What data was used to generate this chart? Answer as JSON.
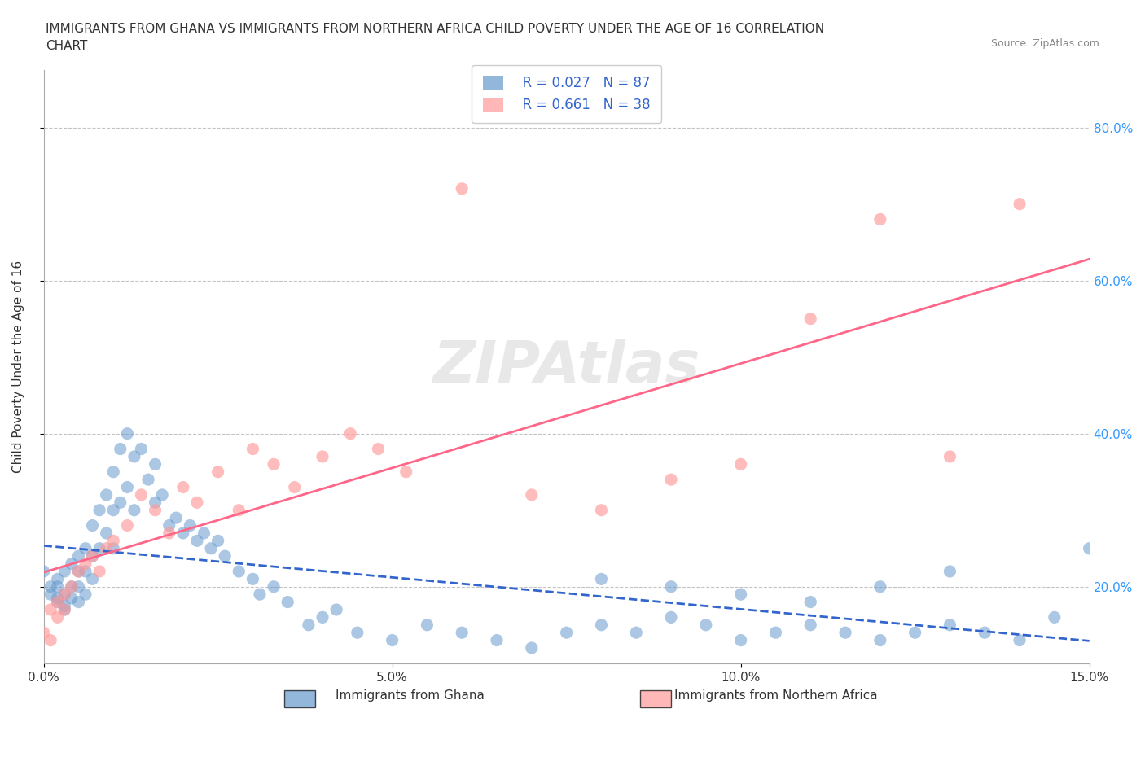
{
  "title": "IMMIGRANTS FROM GHANA VS IMMIGRANTS FROM NORTHERN AFRICA CHILD POVERTY UNDER THE AGE OF 16 CORRELATION\nCHART",
  "source": "Source: ZipAtlas.com",
  "xlabel": "",
  "ylabel": "Child Poverty Under the Age of 16",
  "xlim": [
    0.0,
    0.15
  ],
  "ylim": [
    0.1,
    0.875
  ],
  "xticks": [
    0.0,
    0.05,
    0.1,
    0.15
  ],
  "xtick_labels": [
    "0.0%",
    "5.0%",
    "10.0%",
    "15.0%"
  ],
  "ytick_positions": [
    0.2,
    0.4,
    0.6,
    0.8
  ],
  "ytick_labels": [
    "20.0%",
    "40.0%",
    "60.0%",
    "80.0%"
  ],
  "ghana_color": "#6699CC",
  "northern_africa_color": "#FF9999",
  "ghana_line_color": "#3366CC",
  "northern_africa_line_color": "#FF6688",
  "watermark": "ZIPAtlas",
  "legend_R_ghana": "R = 0.027",
  "legend_N_ghana": "N = 87",
  "legend_R_africa": "R = 0.661",
  "legend_N_africa": "N = 38",
  "ghana_scatter_x": [
    0.0,
    0.001,
    0.001,
    0.002,
    0.002,
    0.002,
    0.002,
    0.003,
    0.003,
    0.003,
    0.003,
    0.004,
    0.004,
    0.004,
    0.005,
    0.005,
    0.005,
    0.005,
    0.006,
    0.006,
    0.006,
    0.007,
    0.007,
    0.007,
    0.008,
    0.008,
    0.009,
    0.009,
    0.01,
    0.01,
    0.01,
    0.011,
    0.011,
    0.012,
    0.012,
    0.013,
    0.013,
    0.014,
    0.015,
    0.016,
    0.016,
    0.017,
    0.018,
    0.019,
    0.02,
    0.021,
    0.022,
    0.023,
    0.024,
    0.025,
    0.026,
    0.028,
    0.03,
    0.031,
    0.033,
    0.035,
    0.038,
    0.04,
    0.042,
    0.045,
    0.05,
    0.055,
    0.06,
    0.065,
    0.07,
    0.075,
    0.08,
    0.085,
    0.09,
    0.095,
    0.1,
    0.105,
    0.11,
    0.115,
    0.12,
    0.125,
    0.13,
    0.135,
    0.14,
    0.145,
    0.15,
    0.13,
    0.12,
    0.11,
    0.1,
    0.09,
    0.08
  ],
  "ghana_scatter_y": [
    0.22,
    0.2,
    0.19,
    0.21,
    0.2,
    0.185,
    0.18,
    0.22,
    0.19,
    0.175,
    0.17,
    0.23,
    0.2,
    0.185,
    0.24,
    0.22,
    0.2,
    0.18,
    0.25,
    0.22,
    0.19,
    0.28,
    0.24,
    0.21,
    0.3,
    0.25,
    0.32,
    0.27,
    0.35,
    0.3,
    0.25,
    0.38,
    0.31,
    0.4,
    0.33,
    0.37,
    0.3,
    0.38,
    0.34,
    0.36,
    0.31,
    0.32,
    0.28,
    0.29,
    0.27,
    0.28,
    0.26,
    0.27,
    0.25,
    0.26,
    0.24,
    0.22,
    0.21,
    0.19,
    0.2,
    0.18,
    0.15,
    0.16,
    0.17,
    0.14,
    0.13,
    0.15,
    0.14,
    0.13,
    0.12,
    0.14,
    0.15,
    0.14,
    0.16,
    0.15,
    0.13,
    0.14,
    0.15,
    0.14,
    0.13,
    0.14,
    0.15,
    0.14,
    0.13,
    0.16,
    0.25,
    0.22,
    0.2,
    0.18,
    0.19,
    0.2,
    0.21
  ],
  "africa_scatter_x": [
    0.0,
    0.001,
    0.001,
    0.002,
    0.002,
    0.003,
    0.003,
    0.004,
    0.005,
    0.006,
    0.007,
    0.008,
    0.009,
    0.01,
    0.012,
    0.014,
    0.016,
    0.018,
    0.02,
    0.022,
    0.025,
    0.028,
    0.03,
    0.033,
    0.036,
    0.04,
    0.044,
    0.048,
    0.052,
    0.06,
    0.07,
    0.08,
    0.09,
    0.1,
    0.11,
    0.12,
    0.13,
    0.14
  ],
  "africa_scatter_y": [
    0.14,
    0.17,
    0.13,
    0.18,
    0.16,
    0.19,
    0.17,
    0.2,
    0.22,
    0.23,
    0.24,
    0.22,
    0.25,
    0.26,
    0.28,
    0.32,
    0.3,
    0.27,
    0.33,
    0.31,
    0.35,
    0.3,
    0.38,
    0.36,
    0.33,
    0.37,
    0.4,
    0.38,
    0.35,
    0.72,
    0.32,
    0.3,
    0.34,
    0.36,
    0.55,
    0.68,
    0.37,
    0.7
  ]
}
